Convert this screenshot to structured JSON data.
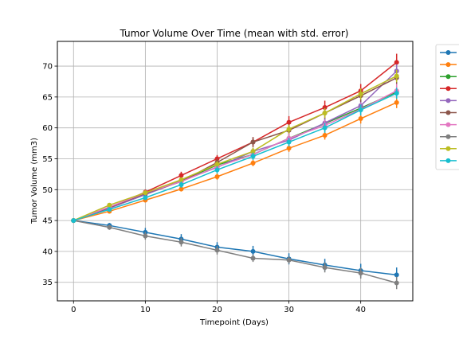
{
  "chart_data": {
    "type": "line",
    "title": "Tumor Volume Over Time (mean with std. error)",
    "xlabel": "Timepoint (Days)",
    "ylabel": "Tumor Volume (mm3)",
    "xlim": [
      -2.25,
      47.25
    ],
    "ylim": [
      32.0,
      74.0
    ],
    "xticks": [
      0,
      10,
      20,
      30,
      40
    ],
    "yticks": [
      35,
      40,
      45,
      50,
      55,
      60,
      65,
      70
    ],
    "grid": true,
    "legend": "outside top-right",
    "x": [
      0,
      5,
      10,
      15,
      20,
      25,
      30,
      35,
      40,
      45
    ],
    "series": [
      {
        "color": "#1f77b4",
        "values": [
          45.0,
          44.2,
          43.1,
          42.0,
          40.7,
          40.0,
          38.8,
          37.8,
          36.9,
          36.2
        ],
        "errors": [
          0,
          0.4,
          0.7,
          0.8,
          0.8,
          0.9,
          0.9,
          1.0,
          1.1,
          1.2
        ]
      },
      {
        "color": "#ff7f0e",
        "values": [
          45.0,
          46.5,
          48.3,
          50.1,
          52.1,
          54.3,
          56.7,
          58.8,
          61.5,
          64.1
        ],
        "errors": [
          0,
          0.2,
          0.3,
          0.4,
          0.5,
          0.5,
          0.6,
          0.7,
          0.8,
          0.9
        ]
      },
      {
        "color": "#2ca02c",
        "values": [
          45.0,
          47.1,
          49.4,
          51.4,
          54.0,
          55.7,
          58.3,
          60.7,
          63.2,
          65.8
        ],
        "errors": [
          0,
          0.2,
          0.4,
          0.5,
          0.6,
          0.6,
          0.7,
          0.8,
          0.9,
          1.0
        ]
      },
      {
        "color": "#d62728",
        "values": [
          45.0,
          47.1,
          49.6,
          52.3,
          55.0,
          57.7,
          60.9,
          63.3,
          66.0,
          70.6
        ],
        "errors": [
          0,
          0.2,
          0.4,
          0.6,
          0.6,
          0.8,
          1.0,
          1.1,
          1.1,
          1.4
        ]
      },
      {
        "color": "#9467bd",
        "values": [
          45.0,
          47.0,
          49.2,
          51.4,
          53.6,
          56.2,
          58.0,
          60.8,
          63.6,
          69.2
        ],
        "errors": [
          0,
          0.2,
          0.3,
          0.5,
          0.6,
          0.6,
          0.7,
          0.9,
          1.0,
          1.1
        ]
      },
      {
        "color": "#8c564b",
        "values": [
          45.0,
          47.1,
          49.4,
          51.3,
          54.4,
          57.7,
          59.6,
          62.4,
          65.2,
          68.1
        ],
        "errors": [
          0,
          0.2,
          0.4,
          0.5,
          0.6,
          0.8,
          0.9,
          0.9,
          1.0,
          1.0
        ]
      },
      {
        "color": "#e377c2",
        "values": [
          45.0,
          47.2,
          49.5,
          51.3,
          53.7,
          55.7,
          58.3,
          60.4,
          63.0,
          66.0
        ],
        "errors": [
          0,
          0.2,
          0.4,
          0.5,
          0.6,
          0.7,
          0.8,
          0.9,
          1.0,
          1.1
        ]
      },
      {
        "color": "#7f7f7f",
        "values": [
          45.0,
          43.9,
          42.5,
          41.5,
          40.2,
          38.9,
          38.6,
          37.4,
          36.5,
          34.9
        ],
        "errors": [
          0,
          0.4,
          0.6,
          0.7,
          0.7,
          0.6,
          0.6,
          0.8,
          0.9,
          1.0
        ]
      },
      {
        "color": "#bcbd22",
        "values": [
          45.0,
          47.5,
          49.5,
          51.6,
          54.1,
          56.2,
          59.8,
          62.4,
          65.5,
          68.4
        ],
        "errors": [
          0,
          0.2,
          0.3,
          0.4,
          0.5,
          0.6,
          0.7,
          0.8,
          0.9,
          1.0
        ]
      },
      {
        "color": "#17becf",
        "values": [
          45.0,
          46.8,
          48.7,
          50.8,
          53.2,
          55.4,
          57.7,
          60.0,
          62.9,
          65.6
        ],
        "errors": [
          0,
          0.2,
          0.4,
          0.5,
          0.6,
          0.6,
          0.7,
          0.8,
          0.9,
          0.9
        ]
      }
    ]
  }
}
